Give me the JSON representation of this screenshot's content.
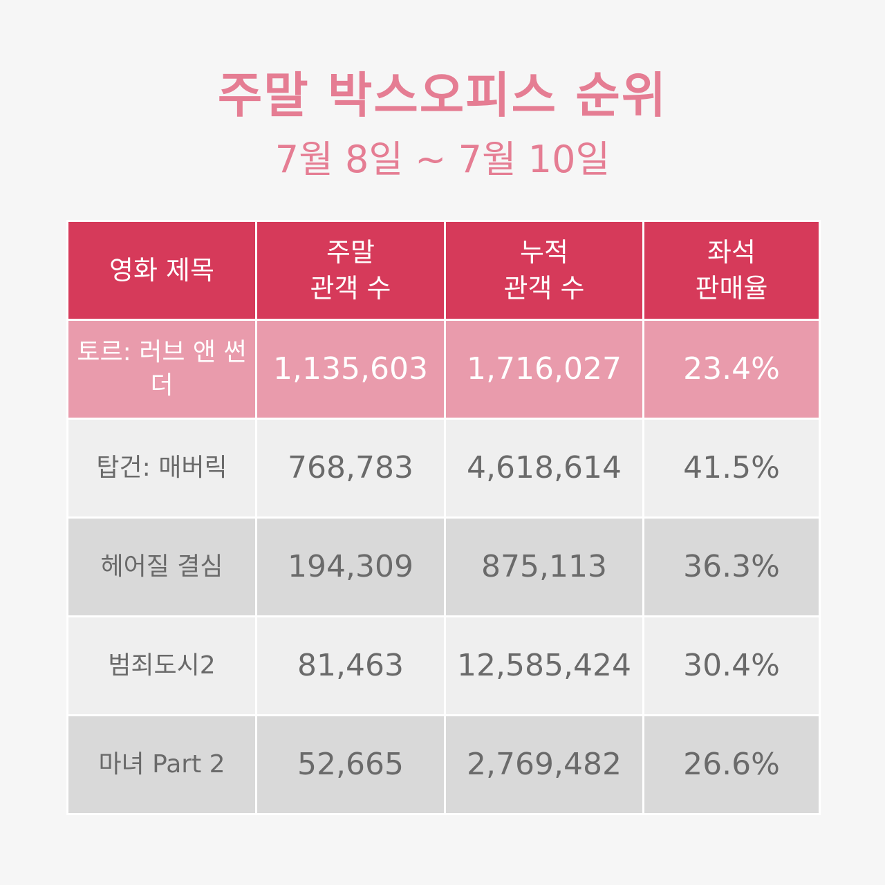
{
  "header": {
    "title": "주말 박스오피스 순위",
    "subtitle": "7월 8일 ~ 7월 10일"
  },
  "table": {
    "columns": [
      "영화 제목",
      "주말\n관객 수",
      "누적\n관객 수",
      "좌석\n판매율"
    ],
    "rows": [
      [
        "토르: 러브 앤 썬더",
        "1,135,603",
        "1,716,027",
        "23.4%"
      ],
      [
        "탑건: 매버릭",
        "768,783",
        "4,618,614",
        "41.5%"
      ],
      [
        "헤어질 결심",
        "194,309",
        "875,113",
        "36.3%"
      ],
      [
        "범죄도시2",
        "81,463",
        "12,585,424",
        "30.4%"
      ],
      [
        "마녀 Part 2",
        "52,665",
        "2,769,482",
        "26.6%"
      ]
    ]
  }
}
